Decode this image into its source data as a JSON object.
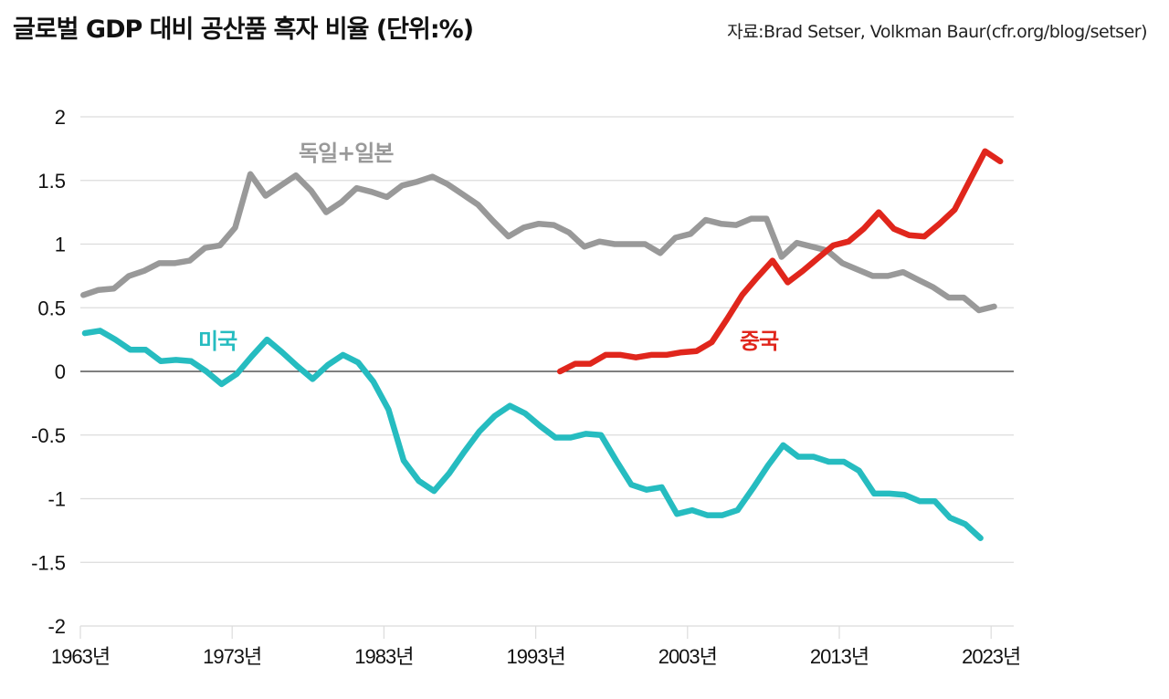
{
  "title": "글로벌 GDP 대비 공산품 흑자 비율 (단위:%)",
  "source": "자료:Brad Setser, Volkman Baur(cfr.org/blog/setser)",
  "chart_data": {
    "type": "line",
    "title": "글로벌 GDP 대비 공산품 흑자 비율 (단위:%)",
    "xlabel": "",
    "ylabel": "",
    "ylim": [
      -2,
      2
    ],
    "xlim": [
      1963,
      2024.3
    ],
    "grid": true,
    "y_ticks": [
      2,
      1.5,
      1,
      0.5,
      0,
      -0.5,
      -1,
      -1.5,
      -2
    ],
    "y_tick_labels": [
      "2",
      "1.5",
      "1",
      "0.5",
      "0",
      "-0.5",
      "-1",
      "-1.5",
      "-2"
    ],
    "x_ticks": [
      1963,
      1973,
      1983,
      1993,
      2003,
      2013,
      2023
    ],
    "x_tick_labels": [
      "1963년",
      "1973년",
      "1983년",
      "1993년",
      "2003년",
      "2013년",
      "2023년"
    ],
    "series": [
      {
        "name": "독일+일본",
        "color": "#999999",
        "start_year": 1963.2,
        "values": [
          0.6,
          0.64,
          0.65,
          0.75,
          0.79,
          0.85,
          0.85,
          0.87,
          0.97,
          0.99,
          1.13,
          1.55,
          1.38,
          1.46,
          1.54,
          1.42,
          1.25,
          1.33,
          1.44,
          1.41,
          1.37,
          1.46,
          1.49,
          1.53,
          1.47,
          1.39,
          1.31,
          1.18,
          1.06,
          1.13,
          1.16,
          1.15,
          1.09,
          0.98,
          1.02,
          1.0,
          1.0,
          1.0,
          0.93,
          1.05,
          1.08,
          1.19,
          1.16,
          1.15,
          1.2,
          1.2,
          0.9,
          1.01,
          0.98,
          0.95,
          0.85,
          0.8,
          0.75,
          0.75,
          0.78,
          0.72,
          0.66,
          0.58,
          0.58,
          0.48,
          0.51
        ]
      },
      {
        "name": "미국",
        "color": "#26BCC0",
        "start_year": 1963.3,
        "values": [
          0.3,
          0.32,
          0.25,
          0.17,
          0.17,
          0.08,
          0.09,
          0.08,
          0.0,
          -0.1,
          -0.02,
          0.12,
          0.25,
          0.15,
          0.04,
          -0.06,
          0.05,
          0.13,
          0.07,
          -0.08,
          -0.3,
          -0.7,
          -0.86,
          -0.94,
          -0.8,
          -0.63,
          -0.47,
          -0.35,
          -0.27,
          -0.33,
          -0.43,
          -0.52,
          -0.52,
          -0.49,
          -0.5,
          -0.7,
          -0.89,
          -0.93,
          -0.91,
          -1.12,
          -1.09,
          -1.13,
          -1.13,
          -1.09,
          -0.92,
          -0.74,
          -0.58,
          -0.67,
          -0.67,
          -0.71,
          -0.71,
          -0.78,
          -0.96,
          -0.96,
          -0.97,
          -1.02,
          -1.02,
          -1.15,
          -1.2,
          -1.31
        ]
      },
      {
        "name": "중국",
        "color": "#E0261C",
        "start_year": 1994.6,
        "values": [
          0.0,
          0.06,
          0.06,
          0.13,
          0.13,
          0.11,
          0.13,
          0.13,
          0.15,
          0.16,
          0.23,
          0.41,
          0.6,
          0.74,
          0.87,
          0.7,
          0.79,
          0.89,
          0.99,
          1.02,
          1.12,
          1.25,
          1.12,
          1.07,
          1.06,
          1.16,
          1.27,
          1.5,
          1.73,
          1.65
        ]
      }
    ],
    "annotations": [
      {
        "text": "독일+일본",
        "series": "독일+일본"
      },
      {
        "text": "미국",
        "series": "미국"
      },
      {
        "text": "중국",
        "series": "중국"
      }
    ]
  }
}
